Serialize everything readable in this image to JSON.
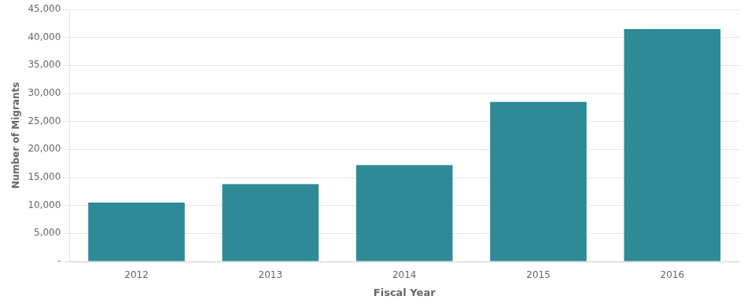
{
  "chart_data": {
    "type": "bar",
    "categories": [
      "2012",
      "2013",
      "2014",
      "2015",
      "2016"
    ],
    "values": [
      10500,
      13800,
      17200,
      28500,
      41500
    ],
    "color": "#2e8a96",
    "xlabel": "Fiscal Year",
    "ylabel": "Number of Migrants",
    "ylim": [
      0,
      45000
    ],
    "yticks": [
      {
        "value": 0,
        "label": "-"
      },
      {
        "value": 5000,
        "label": "5,000"
      },
      {
        "value": 10000,
        "label": "10,000"
      },
      {
        "value": 15000,
        "label": "15,000"
      },
      {
        "value": 20000,
        "label": "20,000"
      },
      {
        "value": 25000,
        "label": "25,000"
      },
      {
        "value": 30000,
        "label": "30,000"
      },
      {
        "value": 35000,
        "label": "35,000"
      },
      {
        "value": 40000,
        "label": "40,000"
      },
      {
        "value": 45000,
        "label": "45,000"
      }
    ],
    "grid": true
  }
}
